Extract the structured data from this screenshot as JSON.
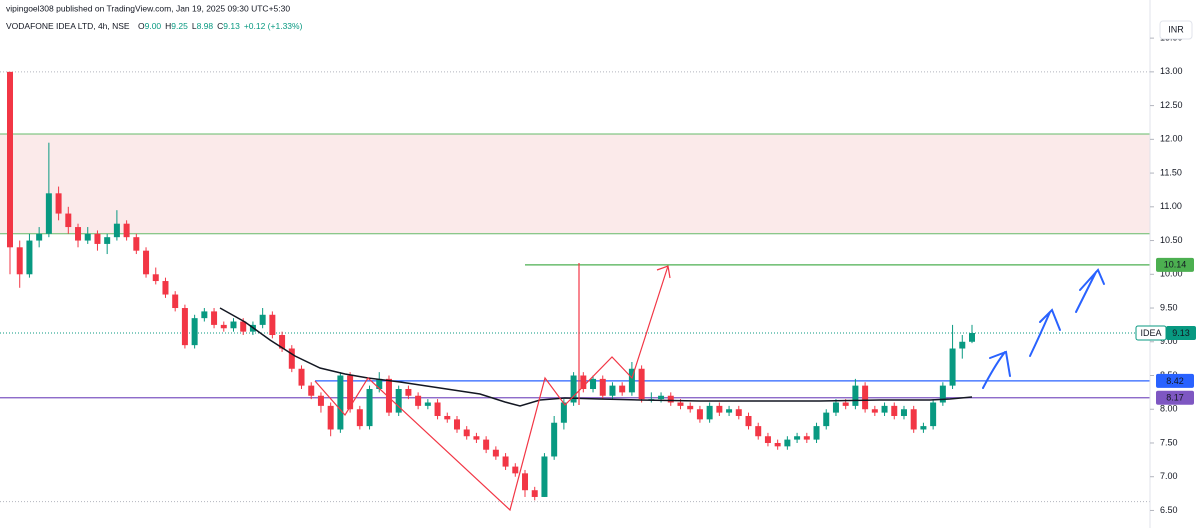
{
  "chart_data": {
    "type": "candlestick",
    "publisher_note": "vipingoel308 published on TradingView.com, Jan 19, 2025 09:30 UTC+5:30",
    "symbol_title": "VODAFONE IDEA LTD, 4h, NSE",
    "ohlc_legend": [
      {
        "label": "O",
        "value": "9.00"
      },
      {
        "label": "H",
        "value": "9.25"
      },
      {
        "label": "L",
        "value": "8.98"
      },
      {
        "label": "C",
        "value": "9.13"
      }
    ],
    "change": "+0.12 (+1.33%)",
    "currency": "INR",
    "up_color": "#089981",
    "down_color": "#f23645",
    "ylim": [
      6.24,
      13.65
    ],
    "yticks": [
      {
        "value": 6.5,
        "label": "6.50"
      },
      {
        "value": 7,
        "label": "7.00"
      },
      {
        "value": 7.5,
        "label": "7.50"
      },
      {
        "value": 8,
        "label": "8.00"
      },
      {
        "value": 8.5,
        "label": "8.50"
      },
      {
        "value": 9,
        "label": "9.00"
      },
      {
        "value": 9.5,
        "label": "9.50"
      },
      {
        "value": 10,
        "label": "10.00"
      },
      {
        "value": 10.5,
        "label": "10.50"
      },
      {
        "value": 11,
        "label": "11.00"
      },
      {
        "value": 11.5,
        "label": "11.50"
      },
      {
        "value": 12,
        "label": "12.00"
      },
      {
        "value": 12.5,
        "label": "12.50"
      },
      {
        "value": 13,
        "label": "13.00"
      },
      {
        "value": 13.5,
        "label": "13.50"
      }
    ],
    "zone": [
      10.6,
      12.08
    ],
    "zone_color": "#fbeaea",
    "dotted_levels": [
      13.0,
      6.63
    ],
    "price_labels": [
      {
        "value": 10.14,
        "color": "#4caf50"
      },
      {
        "value": 8.42,
        "color": "#2962ff"
      },
      {
        "value": 8.17,
        "color": "#7e57c2"
      }
    ],
    "last_price": {
      "symbol": "IDEA",
      "value": 9.13
    },
    "ohlc": [
      [
        13.0,
        13.0,
        10.0,
        10.4
      ],
      [
        10.4,
        10.5,
        9.8,
        10.0
      ],
      [
        10.0,
        10.6,
        9.95,
        10.5
      ],
      [
        10.5,
        10.7,
        10.4,
        10.6
      ],
      [
        10.6,
        11.95,
        10.55,
        11.2
      ],
      [
        11.2,
        11.3,
        10.8,
        10.9
      ],
      [
        10.9,
        11.0,
        10.6,
        10.7
      ],
      [
        10.7,
        10.75,
        10.4,
        10.5
      ],
      [
        10.5,
        10.7,
        10.45,
        10.6
      ],
      [
        10.6,
        10.65,
        10.35,
        10.45
      ],
      [
        10.45,
        10.6,
        10.3,
        10.55
      ],
      [
        10.55,
        10.95,
        10.5,
        10.75
      ],
      [
        10.75,
        10.8,
        10.5,
        10.55
      ],
      [
        10.55,
        10.6,
        10.3,
        10.35
      ],
      [
        10.35,
        10.4,
        9.95,
        10.0
      ],
      [
        10.0,
        10.1,
        9.85,
        9.9
      ],
      [
        9.9,
        9.95,
        9.65,
        9.7
      ],
      [
        9.7,
        9.75,
        9.45,
        9.5
      ],
      [
        9.5,
        9.55,
        8.9,
        8.95
      ],
      [
        8.95,
        9.4,
        8.9,
        9.35
      ],
      [
        9.35,
        9.5,
        9.3,
        9.45
      ],
      [
        9.45,
        9.5,
        9.2,
        9.25
      ],
      [
        9.25,
        9.3,
        9.15,
        9.2
      ],
      [
        9.2,
        9.35,
        9.15,
        9.3
      ],
      [
        9.3,
        9.35,
        9.1,
        9.15
      ],
      [
        9.15,
        9.3,
        9.1,
        9.25
      ],
      [
        9.25,
        9.5,
        9.2,
        9.4
      ],
      [
        9.4,
        9.45,
        9.05,
        9.1
      ],
      [
        9.1,
        9.15,
        8.85,
        8.9
      ],
      [
        8.9,
        8.95,
        8.55,
        8.6
      ],
      [
        8.6,
        8.65,
        8.3,
        8.35
      ],
      [
        8.35,
        8.4,
        8.15,
        8.2
      ],
      [
        8.2,
        8.25,
        7.95,
        8.05
      ],
      [
        8.05,
        8.1,
        7.6,
        7.7
      ],
      [
        7.7,
        8.55,
        7.65,
        8.5
      ],
      [
        8.5,
        8.55,
        7.95,
        8.0
      ],
      [
        8.0,
        8.05,
        7.7,
        7.75
      ],
      [
        7.75,
        8.35,
        7.7,
        8.3
      ],
      [
        8.3,
        8.55,
        8.25,
        8.45
      ],
      [
        8.45,
        8.5,
        7.9,
        7.95
      ],
      [
        7.95,
        8.35,
        7.9,
        8.3
      ],
      [
        8.3,
        8.35,
        8.15,
        8.2
      ],
      [
        8.2,
        8.25,
        8.0,
        8.05
      ],
      [
        8.05,
        8.15,
        8.0,
        8.1
      ],
      [
        8.1,
        8.15,
        7.85,
        7.9
      ],
      [
        7.9,
        7.95,
        7.8,
        7.85
      ],
      [
        7.85,
        7.9,
        7.65,
        7.7
      ],
      [
        7.7,
        7.75,
        7.55,
        7.6
      ],
      [
        7.6,
        7.65,
        7.5,
        7.55
      ],
      [
        7.55,
        7.6,
        7.35,
        7.4
      ],
      [
        7.4,
        7.45,
        7.25,
        7.3
      ],
      [
        7.3,
        7.35,
        7.1,
        7.15
      ],
      [
        7.15,
        7.2,
        7.0,
        7.05
      ],
      [
        7.05,
        7.1,
        6.7,
        6.8
      ],
      [
        6.8,
        6.85,
        6.65,
        6.7
      ],
      [
        6.7,
        7.35,
        6.7,
        7.3
      ],
      [
        7.3,
        7.9,
        7.25,
        7.8
      ],
      [
        7.8,
        8.15,
        7.7,
        8.1
      ],
      [
        8.1,
        8.55,
        8.05,
        8.5
      ],
      [
        8.5,
        8.55,
        8.25,
        8.3
      ],
      [
        8.3,
        8.5,
        8.25,
        8.45
      ],
      [
        8.45,
        8.5,
        8.15,
        8.2
      ],
      [
        8.2,
        8.4,
        8.15,
        8.35
      ],
      [
        8.35,
        8.4,
        8.2,
        8.25
      ],
      [
        8.25,
        8.7,
        8.2,
        8.6
      ],
      [
        8.6,
        8.65,
        8.1,
        8.15
      ],
      [
        8.15,
        8.25,
        8.1,
        8.15
      ],
      [
        8.15,
        8.25,
        8.1,
        8.2
      ],
      [
        8.2,
        8.25,
        8.05,
        8.1
      ],
      [
        8.1,
        8.15,
        8.0,
        8.05
      ],
      [
        8.05,
        8.1,
        7.95,
        8.0
      ],
      [
        8.0,
        8.05,
        7.8,
        7.85
      ],
      [
        7.85,
        8.1,
        7.8,
        8.05
      ],
      [
        8.05,
        8.1,
        7.9,
        7.95
      ],
      [
        7.95,
        8.05,
        7.9,
        8.0
      ],
      [
        8.0,
        8.05,
        7.85,
        7.9
      ],
      [
        7.9,
        7.95,
        7.7,
        7.75
      ],
      [
        7.75,
        7.8,
        7.55,
        7.6
      ],
      [
        7.6,
        7.65,
        7.45,
        7.5
      ],
      [
        7.5,
        7.55,
        7.4,
        7.45
      ],
      [
        7.45,
        7.6,
        7.4,
        7.55
      ],
      [
        7.55,
        7.65,
        7.5,
        7.6
      ],
      [
        7.6,
        7.65,
        7.5,
        7.55
      ],
      [
        7.55,
        7.8,
        7.5,
        7.75
      ],
      [
        7.75,
        8.0,
        7.7,
        7.95
      ],
      [
        7.95,
        8.15,
        7.9,
        8.1
      ],
      [
        8.1,
        8.15,
        8.0,
        8.05
      ],
      [
        8.05,
        8.45,
        8.0,
        8.35
      ],
      [
        8.35,
        8.4,
        7.95,
        8.0
      ],
      [
        8.0,
        8.05,
        7.9,
        7.95
      ],
      [
        7.95,
        8.1,
        7.9,
        8.05
      ],
      [
        8.05,
        8.1,
        7.85,
        7.9
      ],
      [
        7.9,
        8.05,
        7.85,
        8.0
      ],
      [
        8.0,
        8.05,
        7.65,
        7.7
      ],
      [
        7.7,
        7.8,
        7.65,
        7.75
      ],
      [
        7.75,
        8.15,
        7.7,
        8.1
      ],
      [
        8.1,
        8.4,
        8.05,
        8.35
      ],
      [
        8.35,
        9.25,
        8.3,
        8.9
      ],
      [
        8.9,
        9.1,
        8.75,
        9.0
      ],
      [
        9.0,
        9.25,
        8.98,
        9.13
      ]
    ]
  }
}
